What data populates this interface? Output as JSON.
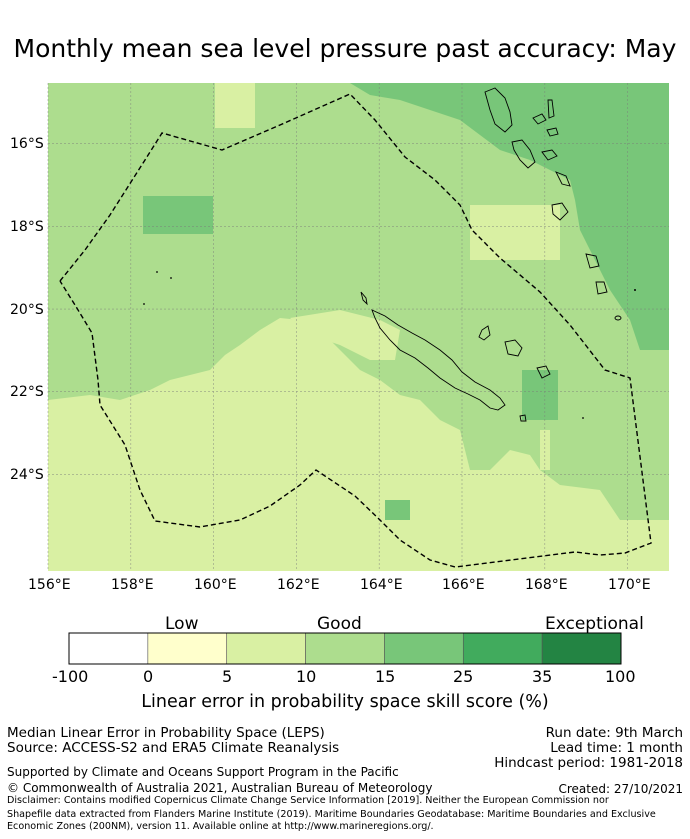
{
  "title": "Monthly mean sea level pressure past accuracy: May",
  "map": {
    "lat_labels": [
      "16°S",
      "18°S",
      "20°S",
      "22°S",
      "24°S"
    ],
    "lon_labels": [
      "156°E",
      "158°E",
      "160°E",
      "162°E",
      "164°E",
      "166°E",
      "168°E",
      "170°E"
    ],
    "extent": {
      "lon_min": 156.0,
      "lon_max": 171.0,
      "lat_min": -25.8,
      "lat_max": -14.5
    }
  },
  "colorbar": {
    "categories": [
      "Low",
      "Good",
      "Exceptional"
    ],
    "bounds": [
      "-100",
      "0",
      "5",
      "10",
      "15",
      "25",
      "35",
      "100"
    ],
    "colors": [
      "#ffffff",
      "#ffffcc",
      "#d9f0a3",
      "#addd8e",
      "#78c679",
      "#41ab5d",
      "#238443"
    ],
    "title": "Linear error in probability space skill score (%)"
  },
  "footer": {
    "method": "Median Linear Error in Probability Space (LEPS)",
    "source": "Source: ACCESS-S2 and ERA5 Climate Reanalysis",
    "run_date": "Run date: 9th March",
    "lead_time": "Lead time: 1 month",
    "hindcast": "Hindcast period: 1981-2018",
    "support": "Supported by Climate and Oceans Support Program in the Pacific",
    "copyright": "© Commonwealth of Australia 2021, Australian Bureau of Meteorology",
    "created": "Created: 27/10/2021",
    "disclaimer1": "Disclaimer: Contains modified Copernicus Climate Change Service Information [2019]. Neither the European Commission nor ECMWF is responsible for any use that may be made of the Copernicus Information or Data it contains.",
    "disclaimer2": "Shapefile data extracted from Flanders Marine Institute (2019). Maritime Boundaries Geodatabase: Maritime Boundaries and Exclusive Economic Zones (200NM), version 11. Available online at http://www.marineregions.org/."
  }
}
